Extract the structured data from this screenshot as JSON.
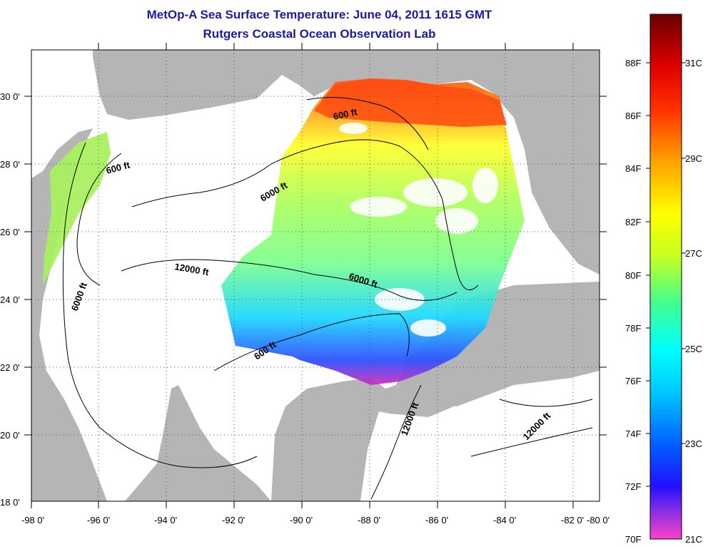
{
  "title": {
    "line1": "MetOp-A Sea Surface Temperature:  June 04, 2011 1615 GMT",
    "line2": "Rutgers Coastal Ocean Observation Lab"
  },
  "map": {
    "longitude_ticks": [
      "-98 0'",
      "-96 0'",
      "-94 0'",
      "-92 0'",
      "-90 0'",
      "-88 0'",
      "-86 0'",
      "-84 0'",
      "-82 0'",
      "-80 0'"
    ],
    "latitude_ticks": [
      "18 0'",
      "20 0'",
      "22 0'",
      "24 0'",
      "26 0'",
      "28 0'",
      "30 0'"
    ],
    "contour_labels": [
      "600 ft",
      "600 ft",
      "600 ft",
      "6000 ft",
      "6000 ft",
      "6000 ft",
      "12000 ft",
      "12000 ft",
      "12000 ft"
    ],
    "colors": {
      "land": "#b5b5b5",
      "no_data": "#ffffff",
      "gridline": "#555555"
    }
  },
  "colorbar": {
    "fahrenheit_labels": [
      "88F",
      "86F",
      "84F",
      "82F",
      "80F",
      "78F",
      "76F",
      "74F",
      "72F",
      "70F"
    ],
    "celsius_labels": [
      "31C",
      "29C",
      "27C",
      "25C",
      "23C",
      "21C"
    ],
    "colors": [
      "#ff40c8",
      "#6a30d8",
      "#0000ff",
      "#0090ff",
      "#00ffff",
      "#40ff90",
      "#c8ff20",
      "#ffff00",
      "#ffa000",
      "#ff3000",
      "#cc0000",
      "#7a0000"
    ]
  }
}
